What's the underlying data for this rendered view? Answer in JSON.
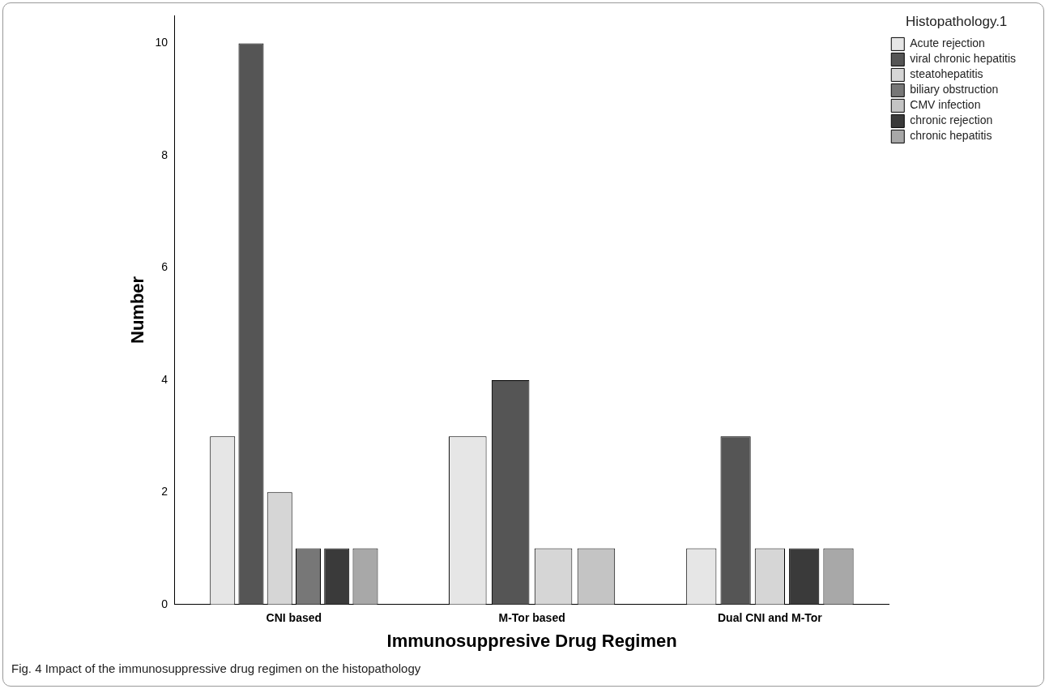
{
  "chart_data": {
    "type": "bar",
    "xlabel": "Immunosuppresive Drug Regimen",
    "ylabel": "Number",
    "legend_title": "Histopathology.1",
    "legend": "top right",
    "categories": [
      "CNI based",
      "M-Tor based",
      "Dual CNI and M-Tor"
    ],
    "series": [
      {
        "name": "Acute rejection",
        "color": "#e6e6e6",
        "values": [
          3,
          3,
          1
        ]
      },
      {
        "name": "viral chronic hepatitis",
        "color": "#555555",
        "values": [
          10,
          4,
          3
        ]
      },
      {
        "name": "steatohepatitis",
        "color": "#d6d6d6",
        "values": [
          2,
          1,
          1
        ]
      },
      {
        "name": "biliary obstruction",
        "color": "#777777",
        "values": [
          1,
          null,
          null
        ]
      },
      {
        "name": "CMV infection",
        "color": "#c4c4c4",
        "values": [
          null,
          1,
          null
        ]
      },
      {
        "name": "chronic rejection",
        "color": "#3a3a3a",
        "values": [
          1,
          null,
          1
        ]
      },
      {
        "name": "chronic hepatitis",
        "color": "#a8a8a8",
        "values": [
          1,
          null,
          1
        ]
      }
    ],
    "ylim": [
      0,
      10.5
    ],
    "yticks": [
      0,
      2,
      4,
      6,
      8,
      10
    ],
    "annotations": [
      "Fig. 4 Impact of the immunosuppressive drug regimen on the histopathology"
    ]
  }
}
